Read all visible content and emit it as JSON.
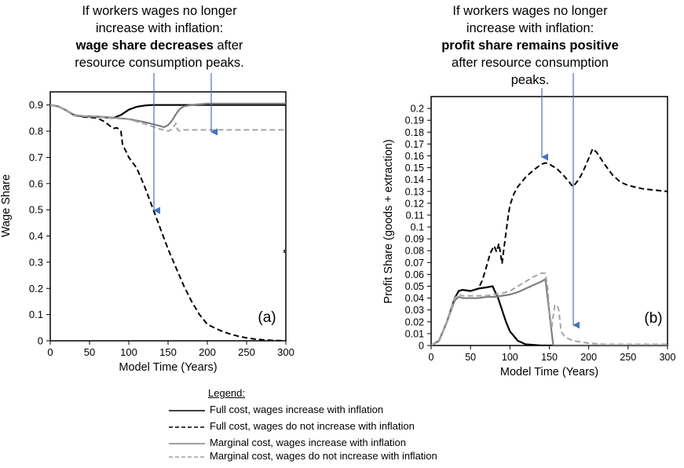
{
  "annotations": {
    "left": {
      "line1": "If workers wages no longer",
      "line2": "increase with inflation:",
      "bold": "wage share decreases",
      "after_bold": " after",
      "line4": "resource consumption peaks."
    },
    "right": {
      "line1": "If workers wages no longer",
      "line2": "increase with inflation:",
      "bold": "profit share remains positive",
      "line4": "after resource consumption",
      "line5": "peaks."
    }
  },
  "legend": {
    "title": "Legend:",
    "items": [
      {
        "label": "Full cost, wages increase with inflation",
        "color": "#000000",
        "dashed": false
      },
      {
        "label": "Full cost, wages do not increase with inflation",
        "color": "#000000",
        "dashed": true
      },
      {
        "label": "Marginal cost, wages increase with inflation",
        "color": "#808080",
        "dashed": false
      },
      {
        "label": "Marginal cost, wages do not increase with inflation",
        "color": "#a0a0a0",
        "dashed": true
      }
    ]
  },
  "colors": {
    "arrow": "#4472c4",
    "full": "#000000",
    "marginal": "#808080"
  },
  "chart_data": [
    {
      "type": "line",
      "panel_label": "(a)",
      "xlabel": "Model Time (Years)",
      "ylabel": "Wage Share",
      "xlim": [
        0,
        300
      ],
      "ylim": [
        0,
        0.95
      ],
      "xticks": [
        0,
        50,
        100,
        150,
        200,
        250,
        300
      ],
      "xtick_labels": [
        "0",
        "50",
        "100",
        "150",
        "200",
        "250",
        "300"
      ],
      "yticks": [
        0,
        0.1,
        0.2,
        0.3,
        0.4,
        0.5,
        0.6,
        0.7,
        0.8,
        0.9
      ],
      "ytick_labels": [
        "0",
        "0.1",
        "0.2",
        "0.3",
        "0.4",
        "0.5",
        "0.6",
        "0.7",
        "0.8",
        "0.9"
      ],
      "series": [
        {
          "name": "Full cost, wages increase with inflation",
          "x": [
            0,
            10,
            20,
            30,
            40,
            60,
            80,
            90,
            100,
            110,
            120,
            130,
            140,
            160,
            200,
            250,
            300
          ],
          "y": [
            0.9,
            0.895,
            0.88,
            0.862,
            0.857,
            0.855,
            0.85,
            0.862,
            0.882,
            0.893,
            0.898,
            0.9,
            0.9,
            0.9,
            0.9,
            0.9,
            0.9
          ]
        },
        {
          "name": "Full cost, wages do not increase with inflation",
          "x": [
            0,
            10,
            20,
            30,
            40,
            60,
            70,
            80,
            85,
            90,
            92,
            100,
            110,
            120,
            130,
            140,
            150,
            160,
            170,
            180,
            190,
            200,
            210,
            220,
            230,
            240,
            250,
            260,
            270,
            280,
            290,
            300
          ],
          "y": [
            0.9,
            0.895,
            0.88,
            0.86,
            0.855,
            0.85,
            0.835,
            0.81,
            0.813,
            0.8,
            0.75,
            0.7,
            0.66,
            0.59,
            0.51,
            0.43,
            0.35,
            0.28,
            0.21,
            0.15,
            0.1,
            0.063,
            0.048,
            0.035,
            0.025,
            0.017,
            0.011,
            0.007,
            0.004,
            0.002,
            0.001,
            0.001
          ]
        },
        {
          "name": "Marginal cost, wages increase with inflation",
          "x": [
            0,
            10,
            20,
            30,
            40,
            60,
            80,
            100,
            120,
            140,
            145,
            150,
            155,
            160,
            165,
            170,
            180,
            200,
            250,
            300
          ],
          "y": [
            0.9,
            0.895,
            0.88,
            0.86,
            0.858,
            0.856,
            0.852,
            0.846,
            0.835,
            0.82,
            0.815,
            0.823,
            0.84,
            0.865,
            0.885,
            0.895,
            0.9,
            0.905,
            0.905,
            0.905
          ]
        },
        {
          "name": "Marginal cost, wages do not increase with inflation",
          "x": [
            0,
            10,
            20,
            30,
            40,
            60,
            80,
            100,
            120,
            140,
            150,
            155,
            160,
            162,
            165,
            170,
            200,
            250,
            300
          ],
          "y": [
            0.9,
            0.895,
            0.88,
            0.86,
            0.857,
            0.855,
            0.85,
            0.845,
            0.828,
            0.808,
            0.8,
            0.808,
            0.83,
            0.806,
            0.8,
            0.805,
            0.805,
            0.805,
            0.805
          ]
        }
      ]
    },
    {
      "type": "line",
      "panel_label": "(b)",
      "xlabel": "Model Time (Years)",
      "ylabel": "Profit Share (goods + extraction)",
      "xlim": [
        0,
        300
      ],
      "ylim": [
        0,
        0.21
      ],
      "xticks": [
        0,
        50,
        100,
        150,
        200,
        250,
        300
      ],
      "xtick_labels": [
        "0",
        "50",
        "100",
        "150",
        "200",
        "250",
        "300"
      ],
      "yticks": [
        0,
        0.01,
        0.02,
        0.03,
        0.04,
        0.05,
        0.06,
        0.07,
        0.08,
        0.09,
        0.1,
        0.11,
        0.12,
        0.13,
        0.14,
        0.15,
        0.16,
        0.17,
        0.18,
        0.19,
        0.2
      ],
      "ytick_labels": [
        "0",
        "0.01",
        "0.02",
        "0.03",
        "0.04",
        "0.05",
        "0.06",
        "0.07",
        "0.08",
        "0.09",
        "0.1",
        "0.11",
        "0.12",
        "0.13",
        "0.14",
        "0.15",
        "0.16",
        "0.17",
        "0.18",
        "0.19",
        "0.2"
      ],
      "series": [
        {
          "name": "Full cost, wages increase with inflation",
          "x": [
            0,
            10,
            20,
            30,
            35,
            40,
            50,
            60,
            70,
            78,
            80,
            85,
            90,
            95,
            100,
            110,
            120,
            140,
            160,
            200,
            300
          ],
          "y": [
            0,
            0.004,
            0.02,
            0.04,
            0.046,
            0.047,
            0.046,
            0.048,
            0.049,
            0.05,
            0.047,
            0.04,
            0.03,
            0.02,
            0.012,
            0.004,
            0.001,
            0,
            0,
            0,
            0
          ]
        },
        {
          "name": "Full cost, wages do not increase with inflation",
          "x": [
            0,
            10,
            20,
            30,
            35,
            40,
            50,
            60,
            65,
            70,
            75,
            80,
            83,
            86,
            90,
            92,
            95,
            98,
            100,
            103,
            105,
            110,
            120,
            130,
            140,
            145,
            150,
            160,
            170,
            180,
            185,
            190,
            195,
            200,
            205,
            210,
            220,
            230,
            240,
            250,
            270,
            300
          ],
          "y": [
            0,
            0.004,
            0.02,
            0.04,
            0.046,
            0.047,
            0.046,
            0.048,
            0.055,
            0.066,
            0.078,
            0.084,
            0.079,
            0.086,
            0.069,
            0.08,
            0.095,
            0.11,
            0.118,
            0.124,
            0.128,
            0.134,
            0.142,
            0.148,
            0.153,
            0.154,
            0.153,
            0.149,
            0.142,
            0.134,
            0.138,
            0.143,
            0.15,
            0.158,
            0.166,
            0.163,
            0.153,
            0.144,
            0.138,
            0.135,
            0.132,
            0.13
          ]
        },
        {
          "name": "Marginal cost, wages increase with inflation",
          "x": [
            0,
            10,
            20,
            30,
            35,
            40,
            50,
            60,
            70,
            80,
            90,
            100,
            110,
            120,
            130,
            140,
            145,
            150,
            155,
            160,
            200,
            300
          ],
          "y": [
            0,
            0.004,
            0.02,
            0.038,
            0.041,
            0.04,
            0.04,
            0.04,
            0.041,
            0.041,
            0.042,
            0.043,
            0.045,
            0.048,
            0.051,
            0.054,
            0.056,
            0.028,
            0,
            0,
            0,
            0
          ]
        },
        {
          "name": "Marginal cost, wages do not increase with inflation",
          "x": [
            0,
            10,
            20,
            30,
            35,
            40,
            50,
            60,
            70,
            80,
            90,
            100,
            110,
            120,
            130,
            140,
            145,
            148,
            150,
            153,
            155,
            157,
            160,
            162,
            165,
            170,
            180,
            190,
            200,
            220,
            250,
            300
          ],
          "y": [
            0,
            0.004,
            0.02,
            0.04,
            0.043,
            0.042,
            0.042,
            0.042,
            0.042,
            0.043,
            0.044,
            0.046,
            0.05,
            0.054,
            0.058,
            0.061,
            0.061,
            0.048,
            0.03,
            0.015,
            0.025,
            0.034,
            0.034,
            0.03,
            0.012,
            0.007,
            0.004,
            0.003,
            0.002,
            0.001,
            0.001,
            0.001
          ]
        }
      ]
    }
  ]
}
